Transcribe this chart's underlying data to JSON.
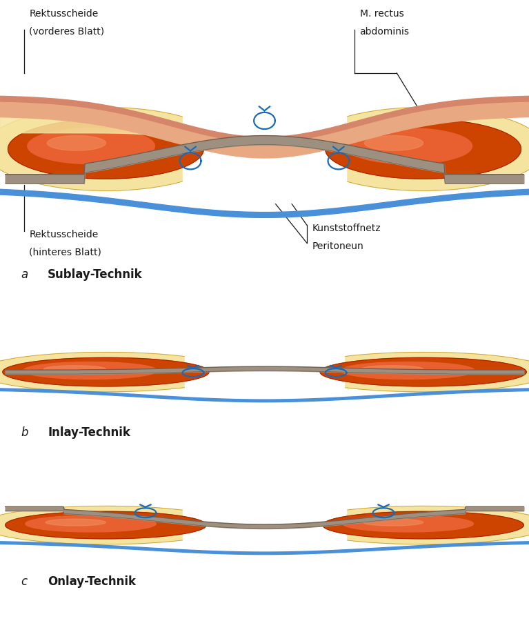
{
  "bg_color": "#ffffff",
  "skin_outer_color": "#d4856a",
  "skin_inner_color": "#e8a882",
  "fascia_color": "#f5e4a0",
  "fascia_outline": "#c8a030",
  "muscle_dark": "#aa2200",
  "muscle_mid": "#cc4400",
  "muscle_light": "#e86030",
  "muscle_highlight": "#f09060",
  "mesh_color": "#9e9080",
  "mesh_dark": "#706050",
  "peri_color": "#4a90d9",
  "suture_color": "#1a6ab5",
  "label_color": "#1a1a1a",
  "panel_a_label": "a",
  "panel_a_title": "Sublay-Technik",
  "panel_b_label": "b",
  "panel_b_title": "Inlay-Technik",
  "panel_c_label": "c",
  "panel_c_title": "Onlay-Technik",
  "ann_vorderes_line1": "Rektusscheide",
  "ann_vorderes_line2": "(vorderes Blatt)",
  "ann_rectus_line1": "M. rectus",
  "ann_rectus_line2": "abdominis",
  "ann_hinteres_line1": "Rektusscheide",
  "ann_hinteres_line2": "(hinteres Blatt)",
  "ann_kunststoff": "Kunststoffnetz",
  "ann_peritoneum": "Peritoneun"
}
